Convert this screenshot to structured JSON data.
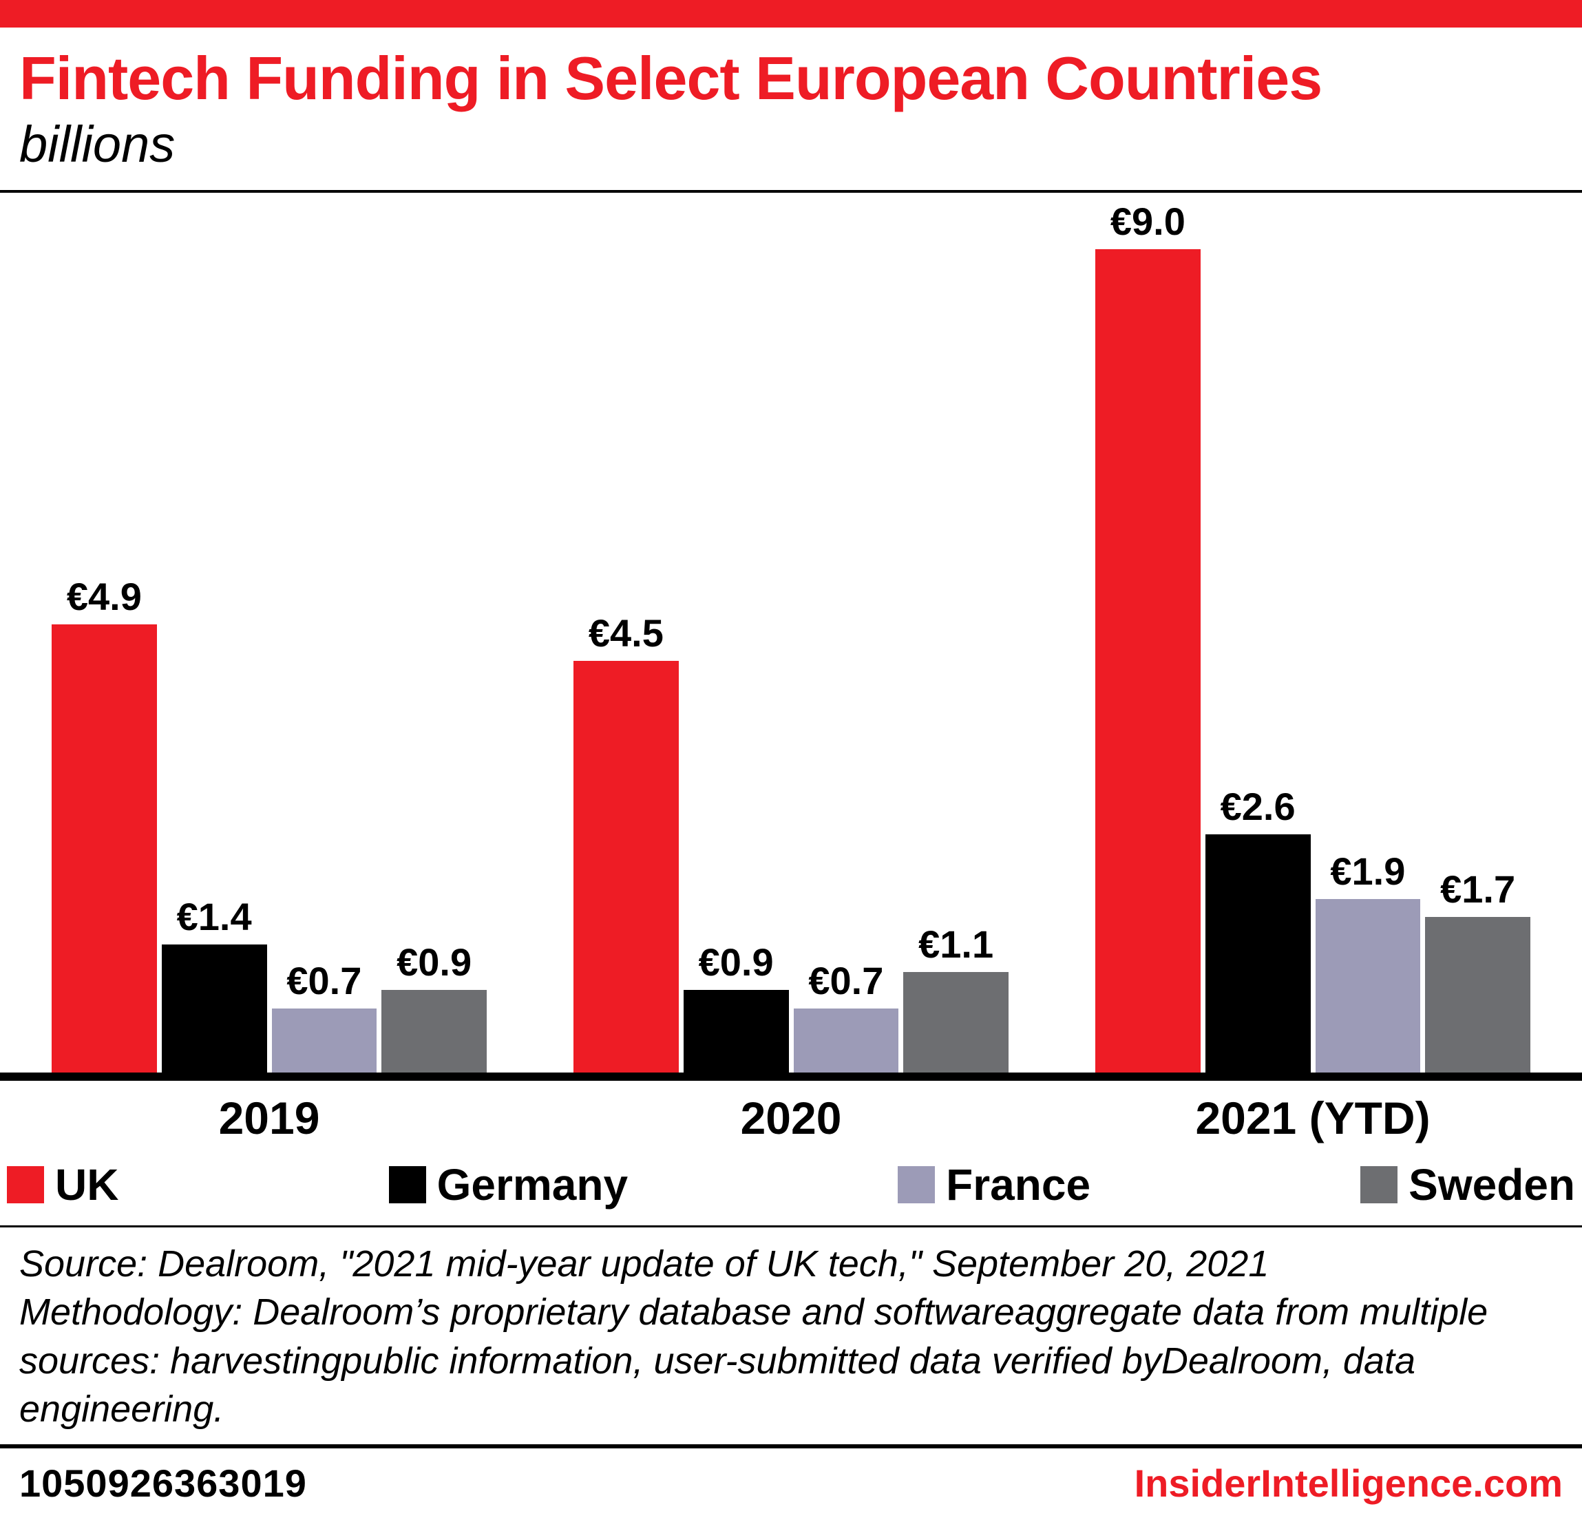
{
  "brand": {
    "accent_color": "#EE1C25"
  },
  "header": {
    "title": "Fintech Funding in Select European Countries",
    "subtitle": "billions"
  },
  "chart_data": {
    "type": "bar",
    "categories": [
      "2019",
      "2020",
      "2021 (YTD)"
    ],
    "series": [
      {
        "name": "UK",
        "color": "#EE1C25",
        "values": [
          4.9,
          4.5,
          9.0
        ]
      },
      {
        "name": "Germany",
        "color": "#000000",
        "values": [
          1.4,
          0.9,
          2.6
        ]
      },
      {
        "name": "France",
        "color": "#9C9BB7",
        "values": [
          0.7,
          0.7,
          1.9
        ]
      },
      {
        "name": "Sweden",
        "color": "#6D6E71",
        "values": [
          0.9,
          1.1,
          1.7
        ]
      }
    ],
    "value_prefix": "€",
    "value_labels": [
      [
        "€4.9",
        "€4.5",
        "€9.0"
      ],
      [
        "€1.4",
        "€0.9",
        "€2.6"
      ],
      [
        "€0.7",
        "€0.7",
        "€1.9"
      ],
      [
        "€0.9",
        "€1.1",
        "€1.7"
      ]
    ],
    "ylim": [
      0,
      9.0
    ],
    "grid": false,
    "legend_position": "bottom",
    "title": "Fintech Funding in Select European Countries",
    "subtitle": "billions",
    "xlabel": "",
    "ylabel": ""
  },
  "source": {
    "line1": "Source: Dealroom, \"2021 mid-year update of UK tech,\" September 20, 2021",
    "methodology": "Methodology: Dealroom’s proprietary database and softwareaggregate data from multiple sources: harvestingpublic information, user-submitted data verified byDealroom, data engineering."
  },
  "footer": {
    "id": "1050926363019",
    "site": "InsiderIntelligence.com"
  }
}
